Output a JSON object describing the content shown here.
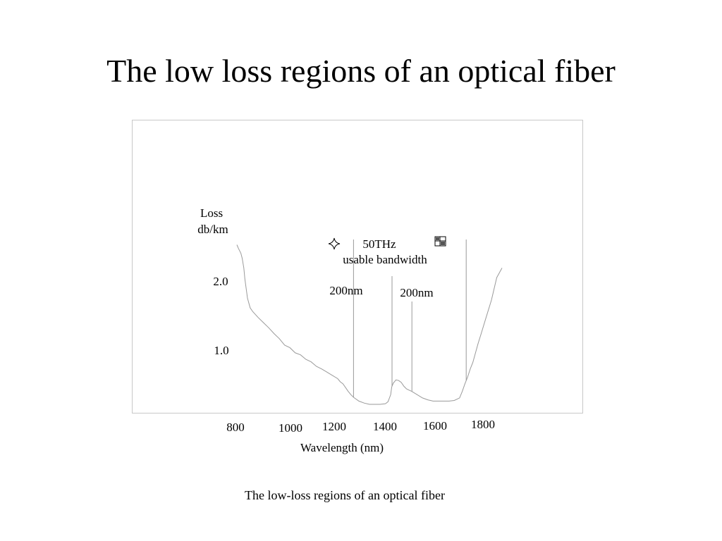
{
  "slide": {
    "title": "The low loss regions of an optical fiber",
    "caption": "The low-loss regions of an optical fiber"
  },
  "chart_data": {
    "type": "line",
    "ylabel_line1": "Loss",
    "ylabel_line2": "db/km",
    "xlabel": "Wavelength (nm)",
    "xlim": [
      800,
      1800
    ],
    "ylim": [
      0,
      3.0
    ],
    "x_ticks": [
      "800",
      "1000",
      "1200",
      "1400",
      "1600",
      "1800"
    ],
    "y_ticks": [
      "2.0",
      "1.0"
    ],
    "grid": false,
    "line_color": "#9a9a9a",
    "series": [
      {
        "x": [
          800,
          805,
          815,
          820,
          826,
          830,
          840,
          850,
          860,
          880,
          900,
          920,
          940,
          960,
          980,
          1000,
          1020,
          1040,
          1060,
          1080,
          1100,
          1120,
          1140,
          1160,
          1180,
          1190,
          1200,
          1210,
          1220,
          1230,
          1240,
          1260,
          1280,
          1300,
          1320,
          1340,
          1360,
          1370,
          1380,
          1384,
          1390,
          1400,
          1410,
          1420,
          1430,
          1440,
          1450,
          1460,
          1480,
          1500,
          1520,
          1540,
          1560,
          1580,
          1600,
          1620,
          1640,
          1650,
          1660,
          1670,
          1680,
          1690,
          1700,
          1710,
          1720,
          1740,
          1760,
          1780,
          1800
        ],
        "y": [
          2.48,
          2.43,
          2.35,
          2.27,
          2.12,
          1.95,
          1.65,
          1.5,
          1.44,
          1.35,
          1.27,
          1.19,
          1.1,
          1.02,
          0.92,
          0.88,
          0.8,
          0.77,
          0.7,
          0.66,
          0.59,
          0.55,
          0.5,
          0.45,
          0.4,
          0.35,
          0.32,
          0.26,
          0.2,
          0.15,
          0.11,
          0.05,
          0.02,
          0.0,
          0.0,
          0.0,
          0.01,
          0.04,
          0.15,
          0.27,
          0.33,
          0.38,
          0.37,
          0.34,
          0.28,
          0.24,
          0.22,
          0.2,
          0.15,
          0.1,
          0.07,
          0.05,
          0.05,
          0.05,
          0.05,
          0.06,
          0.1,
          0.2,
          0.32,
          0.42,
          0.55,
          0.65,
          0.8,
          0.95,
          1.08,
          1.35,
          1.62,
          1.97,
          2.12
        ]
      }
    ],
    "bandwidth_markers": [
      1240,
      1385,
      1460,
      1665
    ],
    "annotations": {
      "bandwidth_line1": "50THz",
      "bandwidth_line2": "usable bandwidth",
      "window1": "200nm",
      "window2": "200nm",
      "left_icon": "sparkle-icon",
      "right_icon": "grid-box-icon"
    }
  }
}
